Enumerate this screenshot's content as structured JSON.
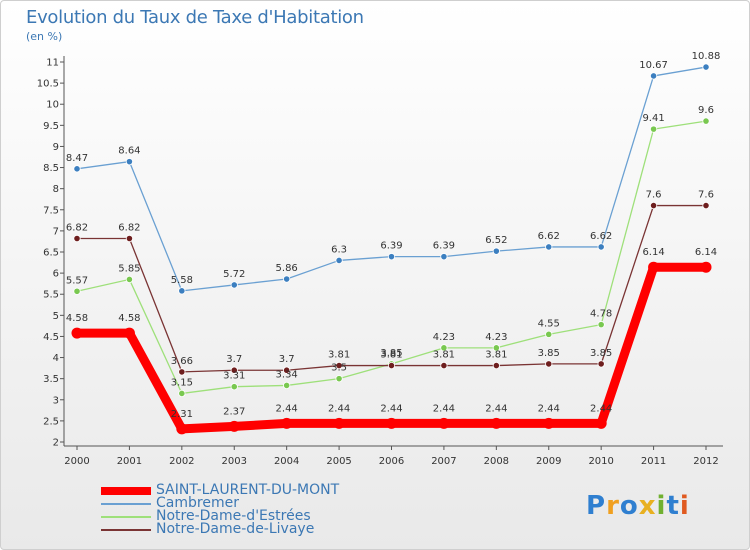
{
  "chart_data": {
    "type": "line",
    "title": "Evolution du Taux de Taxe d'Habitation",
    "subtitle": "(en %)",
    "xlabel": "",
    "ylabel": "",
    "x": [
      "2000",
      "2001",
      "2002",
      "2003",
      "2004",
      "2005",
      "2006",
      "2007",
      "2008",
      "2009",
      "2010",
      "2011",
      "2012"
    ],
    "ylim": [
      2,
      11
    ],
    "yticks": [
      "2",
      "2.5",
      "3",
      "3.5",
      "4",
      "4.5",
      "5",
      "5.5",
      "6",
      "6.5",
      "7",
      "7.5",
      "8",
      "8.5",
      "9",
      "9.5",
      "10",
      "10.5",
      "11"
    ],
    "grid": false,
    "legend_position": "bottom-left",
    "series": [
      {
        "name": "SAINT-LAURENT-DU-MONT",
        "color": "#ff0000",
        "values": [
          4.58,
          4.58,
          2.31,
          2.37,
          2.44,
          2.44,
          2.44,
          2.44,
          2.44,
          2.44,
          2.44,
          6.14,
          6.14
        ]
      },
      {
        "name": "Cambremer",
        "color": "#6aa0d2",
        "marker": "#3c7fc0",
        "values": [
          8.47,
          8.64,
          5.58,
          5.72,
          5.86,
          6.3,
          6.39,
          6.39,
          6.52,
          6.62,
          6.62,
          10.67,
          10.88
        ]
      },
      {
        "name": "Notre-Dame-d'Estrées",
        "color": "#9ee07a",
        "marker": "#79c850",
        "values": [
          5.57,
          5.85,
          3.15,
          3.31,
          3.34,
          3.5,
          3.85,
          4.23,
          4.23,
          4.55,
          4.78,
          9.41,
          9.6
        ]
      },
      {
        "name": "Notre-Dame-de-Livaye",
        "color": "#7a3434",
        "marker": "#6e1e1e",
        "values": [
          6.82,
          6.82,
          3.66,
          3.7,
          3.7,
          3.81,
          3.81,
          3.81,
          3.81,
          3.85,
          3.85,
          7.6,
          7.6
        ]
      }
    ]
  },
  "logo": {
    "letters": [
      "P",
      "r",
      "o",
      "x",
      "i",
      "t",
      "i"
    ],
    "colors": [
      "#2f7fd0",
      "#f0a020",
      "#2f7fd0",
      "#e8b020",
      "#70b030",
      "#2f7fd0",
      "#e05a20"
    ]
  }
}
